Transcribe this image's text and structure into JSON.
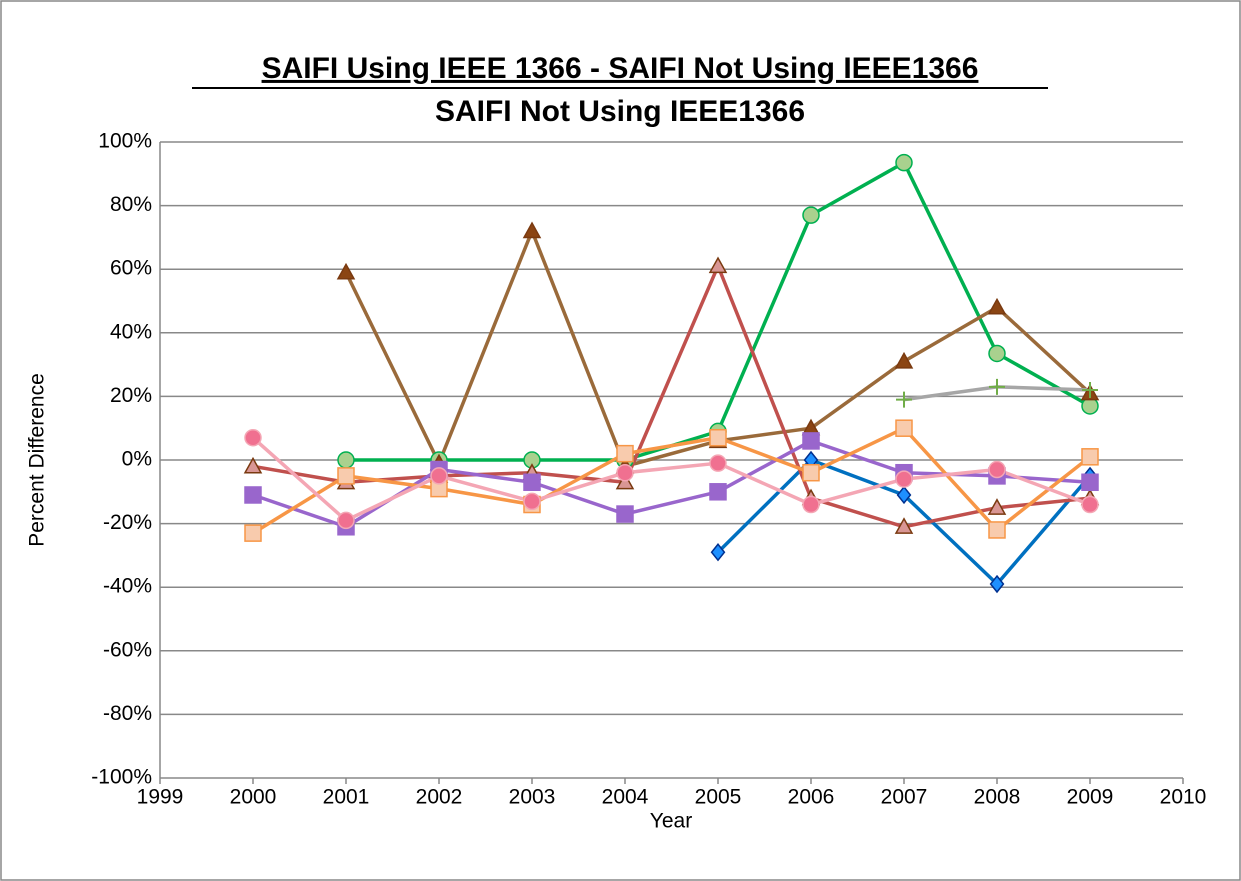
{
  "chart_data": {
    "type": "line",
    "title": "SAIFI Using IEEE 1366 - SAIFI Not Using IEEE1366",
    "subtitle": "SAIFI Not Using IEEE1366",
    "x_label": "Year",
    "y_label": "Percent  Difference",
    "x": [
      2000,
      2001,
      2002,
      2003,
      2004,
      2005,
      2006,
      2007,
      2008,
      2009
    ],
    "xlim": [
      1999,
      2010
    ],
    "xticks": [
      1999,
      2000,
      2001,
      2002,
      2003,
      2004,
      2005,
      2006,
      2007,
      2008,
      2009,
      2010
    ],
    "ylim": [
      -100,
      100
    ],
    "yticks": [
      {
        "value": -100,
        "label": "-100%"
      },
      {
        "value": -80,
        "label": "-80%"
      },
      {
        "value": -60,
        "label": "-60%"
      },
      {
        "value": -40,
        "label": "-40%"
      },
      {
        "value": -20,
        "label": "-20%"
      },
      {
        "value": 0,
        "label": "0%"
      },
      {
        "value": 20,
        "label": "20%"
      },
      {
        "value": 40,
        "label": "40%"
      },
      {
        "value": 60,
        "label": "60%"
      },
      {
        "value": 80,
        "label": "80%"
      },
      {
        "value": 100,
        "label": "100%"
      }
    ],
    "grid": true,
    "series": [
      {
        "color": "#0070c0",
        "marker": "diamond",
        "marker_color": "#1e90ff",
        "values": [
          null,
          null,
          null,
          null,
          null,
          -29,
          0,
          -11,
          -39,
          -5
        ]
      },
      {
        "color": "#00b050",
        "marker": "circle",
        "marker_color": "#a9d18e",
        "values": [
          null,
          0,
          0,
          0,
          0,
          9,
          77,
          93.5,
          33.5,
          17
        ]
      },
      {
        "color": "#9a6a3a",
        "marker": "triangle",
        "marker_color": "#8b4513",
        "values": [
          null,
          59,
          -1,
          72,
          -2,
          6,
          10,
          31,
          48,
          21
        ]
      },
      {
        "color": "#c0504d",
        "marker": "triangle",
        "marker_color": "#d99694",
        "values": [
          -2,
          -7,
          -5,
          -4,
          -7,
          61,
          -12,
          -21,
          -15,
          -12
        ]
      },
      {
        "color": "#9966cc",
        "marker": "square",
        "marker_color": "#9966cc",
        "values": [
          -11,
          -21,
          -3,
          -7,
          -17,
          -10,
          6,
          -4,
          -5,
          -7
        ]
      },
      {
        "color": "#f79646",
        "marker": "square",
        "marker_color": "#f8cbad",
        "values": [
          -23,
          -5,
          -9,
          -14,
          2,
          7,
          -4,
          10,
          -22,
          1
        ]
      },
      {
        "color": "#f4a6b4",
        "marker": "circle",
        "marker_color": "#f07090",
        "values": [
          7,
          -19,
          -5,
          -13,
          -4,
          -1,
          -14,
          -6,
          -3,
          -14
        ]
      },
      {
        "color": "#a6a6a6",
        "marker": "plus",
        "marker_color": "#70ad47",
        "values": [
          null,
          null,
          null,
          null,
          null,
          null,
          null,
          19,
          23,
          22
        ]
      }
    ]
  }
}
